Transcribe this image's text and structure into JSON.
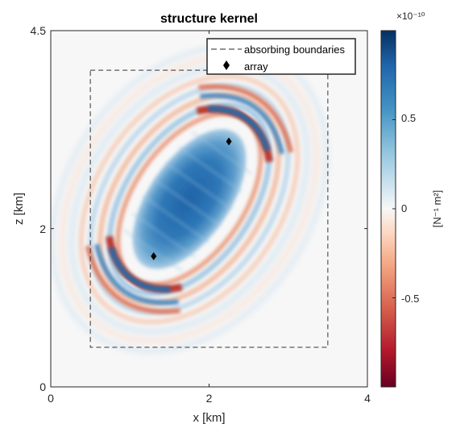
{
  "chart_data": {
    "type": "heatmap",
    "title": "structure kernel",
    "xlabel": "x [km]",
    "ylabel": "z [km]",
    "xlim": [
      0,
      4
    ],
    "ylim": [
      0,
      4.5
    ],
    "x_ticks": [
      "0",
      "2",
      "4"
    ],
    "y_ticks": [
      "0",
      "2",
      "4.5"
    ],
    "grid": false,
    "colormap": "blue-white-red (diverging)",
    "colormap_stops": [
      "#67001f",
      "#b2182b",
      "#d6604d",
      "#f4a582",
      "#fddbc7",
      "#f7f7f7",
      "#d1e5f0",
      "#92c5de",
      "#4393c3",
      "#2166ac",
      "#053061"
    ],
    "absorbing_boundary": {
      "x": [
        0.5,
        3.5
      ],
      "z": [
        0.5,
        4.0
      ]
    },
    "array_points": [
      {
        "x": 1.3,
        "z": 1.65
      },
      {
        "x": 2.25,
        "z": 3.1
      }
    ],
    "legend": {
      "position": "top-right",
      "entries": [
        "absorbing boundaries",
        "array"
      ]
    },
    "colorbar": {
      "label": "[N⁻¹ m²]",
      "exponent": "×10⁻¹⁰",
      "ticks": [
        "0.5",
        "0",
        "-0.5"
      ],
      "tick_values": [
        0.5,
        0,
        -0.5
      ],
      "range": [
        -1.0,
        1.0
      ]
    }
  }
}
